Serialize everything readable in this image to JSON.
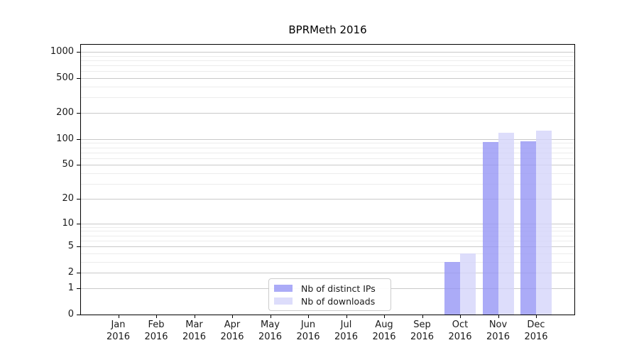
{
  "title": "BPRMeth 2016",
  "chart_data": {
    "type": "bar",
    "title": "BPRMeth 2016",
    "categories": [
      "Jan",
      "Feb",
      "Mar",
      "Apr",
      "May",
      "Jun",
      "Jul",
      "Aug",
      "Sep",
      "Oct",
      "Nov",
      "Dec"
    ],
    "category_year": "2016",
    "series": [
      {
        "name": "Nb of distinct IPs",
        "color": "rgba(150,150,245,0.8)",
        "values": [
          0,
          0,
          0,
          0,
          0,
          0,
          0,
          0,
          0,
          3,
          92,
          94
        ]
      },
      {
        "name": "Nb of downloads",
        "color": "rgba(212,212,250,0.8)",
        "values": [
          0,
          0,
          0,
          0,
          0,
          0,
          0,
          0,
          0,
          4,
          119,
          125
        ]
      }
    ],
    "y_scale": "log1p",
    "y_ticks": [
      0,
      1,
      2,
      5,
      10,
      20,
      50,
      100,
      200,
      500,
      1000
    ],
    "y_minor_gridlines": [
      3,
      4,
      6,
      7,
      8,
      9,
      30,
      40,
      60,
      70,
      80,
      90,
      300,
      400,
      600,
      700,
      800,
      900
    ],
    "ylim": [
      0,
      1000
    ],
    "xlabel": "",
    "ylabel": "",
    "grid": true,
    "legend_position": "lower center",
    "colors": {
      "background": "#ffffff",
      "axis": "#000000",
      "major_grid": "#c9c9c9",
      "minor_grid": "#ececec",
      "text": "#1a1a1a"
    }
  }
}
